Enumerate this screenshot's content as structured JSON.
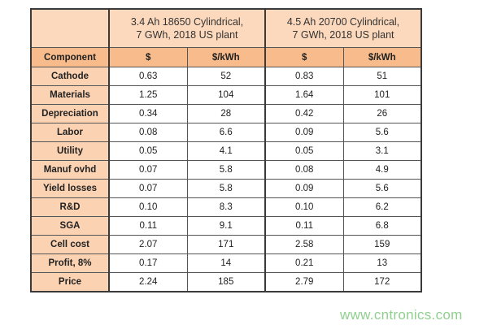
{
  "table": {
    "groups": [
      "3.4 Ah 18650 Cylindrical,\n7 GWh, 2018 US plant",
      "4.5 Ah 20700 Cylindrical,\n7 GWh, 2018 US plant"
    ],
    "columns": [
      "Component",
      "$",
      "$/kWh",
      "$",
      "$/kWh"
    ],
    "rows": [
      [
        "Cathode",
        "0.63",
        "52",
        "0.83",
        "51"
      ],
      [
        "Materials",
        "1.25",
        "104",
        "1.64",
        "101"
      ],
      [
        "Depreciation",
        "0.34",
        "28",
        "0.42",
        "26"
      ],
      [
        "Labor",
        "0.08",
        "6.6",
        "0.09",
        "5.6"
      ],
      [
        "Utility",
        "0.05",
        "4.1",
        "0.05",
        "3.1"
      ],
      [
        "Manuf ovhd",
        "0.07",
        "5.8",
        "0.08",
        "4.9"
      ],
      [
        "Yield losses",
        "0.07",
        "5.8",
        "0.09",
        "5.6"
      ],
      [
        "R&D",
        "0.10",
        "8.3",
        "0.10",
        "6.2"
      ],
      [
        "SGA",
        "0.11",
        "9.1",
        "0.11",
        "6.8"
      ],
      [
        "Cell cost",
        "2.07",
        "171",
        "2.58",
        "159"
      ],
      [
        "Profit, 8%",
        "0.17",
        "14",
        "0.21",
        "13"
      ],
      [
        "Price",
        "2.24",
        "185",
        "2.79",
        "172"
      ]
    ]
  },
  "watermark": "www.cntronics.com",
  "colors": {
    "group_header": "#fcd9bd",
    "column_header": "#f8bb8c",
    "label_column": "#fbd3b3",
    "watermark": "#8fcf8f"
  }
}
